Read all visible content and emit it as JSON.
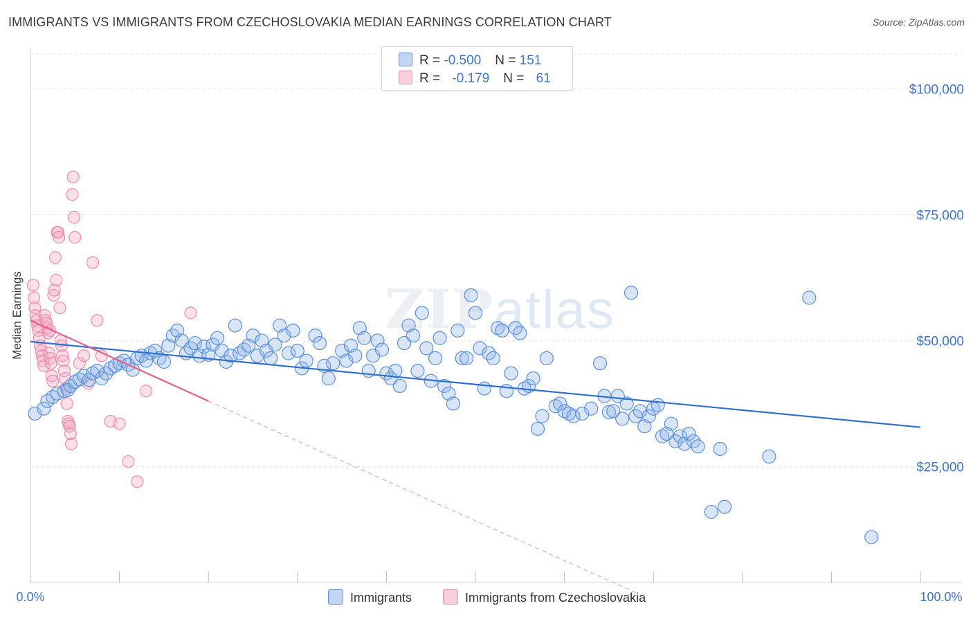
{
  "title": "IMMIGRANTS VS IMMIGRANTS FROM CZECHOSLOVAKIA MEDIAN EARNINGS CORRELATION CHART",
  "source": "Source: ZipAtlas.com",
  "watermark": {
    "zip": "ZIP",
    "atlas": "atlas"
  },
  "legend": {
    "rows": [
      {
        "r_label": "R = ",
        "r_value": "-0.500",
        "n_label": "N = ",
        "n_value": "151",
        "color": "#8fb4e8"
      },
      {
        "r_label": "R = ",
        "r_value": "-0.179",
        "n_label": "N = ",
        "n_value": "61",
        "color": "#f4a7bf"
      }
    ]
  },
  "bottom_legend": {
    "series1": "Immigrants",
    "series2": "Immigrants from Czechoslovakia"
  },
  "chart_data": {
    "type": "scatter",
    "title": "IMMIGRANTS VS IMMIGRANTS FROM CZECHOSLOVAKIA MEDIAN EARNINGS CORRELATION CHART",
    "xlabel": "",
    "ylabel": "Median Earnings",
    "xlim": [
      0,
      100
    ],
    "ylim": [
      2000,
      108000
    ],
    "x_tick_labels": [
      "0.0%",
      "100.0%"
    ],
    "y_ticks": [
      25000,
      50000,
      75000,
      100000
    ],
    "y_tick_labels": [
      "$25,000",
      "$50,000",
      "$75,000",
      "$100,000"
    ],
    "grid": true,
    "legend_position": "top-center",
    "colors": {
      "immigrants": "#5b8fd9",
      "czech": "#ee8bab",
      "blue_line": "#2f6fcf",
      "pink_line": "#e2608a"
    },
    "series": [
      {
        "name": "Immigrants",
        "r": -0.5,
        "n": 151,
        "trend": {
          "x1": 0.0,
          "y1": 49800,
          "x2": 100.0,
          "y2": 32800
        },
        "points": [
          [
            0.5,
            35500
          ],
          [
            1.5,
            36500
          ],
          [
            1.9,
            38000
          ],
          [
            2.5,
            38800
          ],
          [
            3.0,
            39500
          ],
          [
            3.8,
            40000
          ],
          [
            4.2,
            40200
          ],
          [
            4.5,
            41000
          ],
          [
            5.0,
            41800
          ],
          [
            5.5,
            42300
          ],
          [
            6.0,
            43000
          ],
          [
            6.6,
            42200
          ],
          [
            7.0,
            43500
          ],
          [
            7.5,
            44000
          ],
          [
            8.0,
            42500
          ],
          [
            8.5,
            43500
          ],
          [
            9.0,
            44500
          ],
          [
            9.5,
            45000
          ],
          [
            10.0,
            45500
          ],
          [
            10.5,
            46000
          ],
          [
            11.0,
            45200
          ],
          [
            11.5,
            44200
          ],
          [
            12.0,
            46500
          ],
          [
            12.5,
            47000
          ],
          [
            13.0,
            46000
          ],
          [
            13.5,
            47500
          ],
          [
            14.0,
            48000
          ],
          [
            14.5,
            46500
          ],
          [
            15.0,
            45800
          ],
          [
            15.5,
            49000
          ],
          [
            16.0,
            51000
          ],
          [
            16.5,
            52000
          ],
          [
            17.0,
            50000
          ],
          [
            17.5,
            47500
          ],
          [
            18.0,
            48500
          ],
          [
            18.5,
            49500
          ],
          [
            19.0,
            47000
          ],
          [
            19.5,
            48800
          ],
          [
            20.0,
            47200
          ],
          [
            20.5,
            49200
          ],
          [
            21.0,
            50500
          ],
          [
            21.5,
            48000
          ],
          [
            22.0,
            45800
          ],
          [
            22.5,
            47000
          ],
          [
            23.0,
            53000
          ],
          [
            23.5,
            47500
          ],
          [
            24.0,
            48200
          ],
          [
            24.5,
            49000
          ],
          [
            25.0,
            51000
          ],
          [
            25.5,
            47000
          ],
          [
            26.0,
            50000
          ],
          [
            26.5,
            48000
          ],
          [
            27.0,
            46500
          ],
          [
            27.5,
            49200
          ],
          [
            28.0,
            53000
          ],
          [
            28.5,
            51000
          ],
          [
            29.0,
            47500
          ],
          [
            29.5,
            52000
          ],
          [
            30.0,
            48000
          ],
          [
            30.5,
            44500
          ],
          [
            31.0,
            46000
          ],
          [
            32.0,
            51000
          ],
          [
            32.5,
            49500
          ],
          [
            33.0,
            45000
          ],
          [
            33.5,
            42500
          ],
          [
            34.0,
            45500
          ],
          [
            35.0,
            48000
          ],
          [
            35.5,
            46000
          ],
          [
            36.0,
            49000
          ],
          [
            36.5,
            47000
          ],
          [
            37.0,
            52500
          ],
          [
            37.5,
            50500
          ],
          [
            38.0,
            44000
          ],
          [
            38.5,
            47000
          ],
          [
            39.0,
            50000
          ],
          [
            39.5,
            48200
          ],
          [
            40.0,
            43500
          ],
          [
            40.5,
            42500
          ],
          [
            41.0,
            44000
          ],
          [
            41.5,
            41000
          ],
          [
            42.0,
            49500
          ],
          [
            42.5,
            53000
          ],
          [
            43.0,
            51000
          ],
          [
            43.5,
            44000
          ],
          [
            44.0,
            55500
          ],
          [
            44.5,
            48500
          ],
          [
            45.0,
            42000
          ],
          [
            45.5,
            46500
          ],
          [
            46.0,
            50500
          ],
          [
            46.5,
            41000
          ],
          [
            47.0,
            39500
          ],
          [
            47.5,
            37500
          ],
          [
            48.0,
            52000
          ],
          [
            48.5,
            46500
          ],
          [
            49.0,
            46500
          ],
          [
            49.5,
            59000
          ],
          [
            50.0,
            55500
          ],
          [
            50.5,
            48500
          ],
          [
            51.0,
            40500
          ],
          [
            51.5,
            47500
          ],
          [
            52.0,
            46500
          ],
          [
            52.5,
            52500
          ],
          [
            53.0,
            52000
          ],
          [
            53.5,
            40000
          ],
          [
            54.0,
            43500
          ],
          [
            54.5,
            52500
          ],
          [
            55.0,
            51500
          ],
          [
            55.5,
            40500
          ],
          [
            56.0,
            41000
          ],
          [
            56.5,
            42500
          ],
          [
            57.0,
            32500
          ],
          [
            57.5,
            35000
          ],
          [
            58.0,
            46500
          ],
          [
            59.0,
            37000
          ],
          [
            59.5,
            37500
          ],
          [
            60.0,
            36000
          ],
          [
            60.5,
            35500
          ],
          [
            61.0,
            35000
          ],
          [
            62.0,
            35500
          ],
          [
            63.0,
            36500
          ],
          [
            64.0,
            45500
          ],
          [
            64.5,
            39000
          ],
          [
            65.0,
            35800
          ],
          [
            65.5,
            36000
          ],
          [
            66.0,
            39000
          ],
          [
            66.5,
            34500
          ],
          [
            67.0,
            37500
          ],
          [
            67.5,
            59500
          ],
          [
            68.0,
            35000
          ],
          [
            68.5,
            36000
          ],
          [
            69.0,
            33000
          ],
          [
            69.5,
            35000
          ],
          [
            70.0,
            36500
          ],
          [
            70.5,
            37200
          ],
          [
            71.0,
            31000
          ],
          [
            71.5,
            31500
          ],
          [
            72.0,
            33500
          ],
          [
            72.5,
            30000
          ],
          [
            73.0,
            31000
          ],
          [
            73.5,
            29500
          ],
          [
            74.0,
            31500
          ],
          [
            74.5,
            30000
          ],
          [
            75.0,
            29000
          ],
          [
            76.5,
            16000
          ],
          [
            77.5,
            28500
          ],
          [
            78.0,
            17000
          ],
          [
            83.0,
            27000
          ],
          [
            87.5,
            58500
          ],
          [
            94.5,
            11000
          ]
        ]
      },
      {
        "name": "Immigrants from Czechoslovakia",
        "r": -0.179,
        "n": 61,
        "trend": {
          "x1": 0.0,
          "y1": 54000,
          "x2": 20.0,
          "y2": 38000
        },
        "trend_ext": {
          "x1": 20.0,
          "y1": 38000,
          "x2": 68.0,
          "y2": 0
        },
        "points": [
          [
            0.3,
            61000
          ],
          [
            0.4,
            58500
          ],
          [
            0.5,
            56500
          ],
          [
            0.6,
            55000
          ],
          [
            0.7,
            54000
          ],
          [
            0.8,
            53000
          ],
          [
            0.9,
            52000
          ],
          [
            1.0,
            50500
          ],
          [
            1.1,
            49000
          ],
          [
            1.2,
            48000
          ],
          [
            1.3,
            47000
          ],
          [
            1.4,
            46000
          ],
          [
            1.5,
            45000
          ],
          [
            1.6,
            55000
          ],
          [
            1.7,
            54000
          ],
          [
            1.8,
            53500
          ],
          [
            1.9,
            52500
          ],
          [
            2.0,
            51500
          ],
          [
            2.1,
            47500
          ],
          [
            2.2,
            46500
          ],
          [
            2.3,
            45500
          ],
          [
            2.4,
            43000
          ],
          [
            2.5,
            42000
          ],
          [
            2.6,
            59000
          ],
          [
            2.7,
            60000
          ],
          [
            2.8,
            66500
          ],
          [
            2.9,
            62000
          ],
          [
            3.0,
            71500
          ],
          [
            3.1,
            71500
          ],
          [
            3.2,
            70500
          ],
          [
            3.3,
            56500
          ],
          [
            3.4,
            50000
          ],
          [
            3.5,
            49000
          ],
          [
            3.6,
            47000
          ],
          [
            3.7,
            46000
          ],
          [
            3.8,
            44000
          ],
          [
            3.9,
            42500
          ],
          [
            4.0,
            40500
          ],
          [
            4.1,
            37500
          ],
          [
            4.2,
            34000
          ],
          [
            4.3,
            33500
          ],
          [
            4.4,
            33000
          ],
          [
            4.5,
            31500
          ],
          [
            4.6,
            29500
          ],
          [
            4.7,
            79000
          ],
          [
            4.8,
            82500
          ],
          [
            4.9,
            74500
          ],
          [
            5.0,
            70500
          ],
          [
            5.5,
            45500
          ],
          [
            6.0,
            47000
          ],
          [
            6.5,
            41500
          ],
          [
            7.0,
            65500
          ],
          [
            7.5,
            54000
          ],
          [
            8.0,
            47000
          ],
          [
            9.0,
            34000
          ],
          [
            10.0,
            33500
          ],
          [
            11.0,
            26000
          ],
          [
            12.0,
            22000
          ],
          [
            13.0,
            40000
          ],
          [
            18.0,
            55500
          ],
          [
            2.2,
            52000
          ]
        ]
      }
    ]
  }
}
